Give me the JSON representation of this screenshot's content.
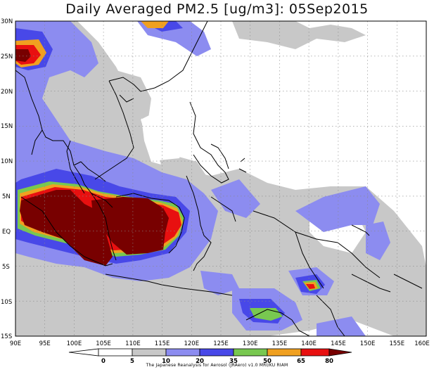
{
  "title": "Daily Averaged PM2.5 [ug/m3]: 05Sep2015",
  "credit": "The Japanese Reanalysis for Aerosol (JRAero) v1.0 MRI/KU RIAM",
  "map": {
    "lon_range": [
      90,
      160
    ],
    "lat_range": [
      -15,
      30
    ],
    "lat_labels": [
      "30N",
      "25N",
      "20N",
      "15N",
      "10N",
      "5N",
      "EQ",
      "5S",
      "10S",
      "15S"
    ],
    "lon_labels": [
      "90E",
      "95E",
      "100E",
      "105E",
      "110E",
      "115E",
      "120E",
      "125E",
      "130E",
      "135E",
      "140E",
      "145E",
      "150E",
      "155E",
      "160E"
    ]
  },
  "colorbar": {
    "levels": [
      "0",
      "5",
      "10",
      "20",
      "35",
      "50",
      "65",
      "80"
    ],
    "colors": [
      "#ffffff",
      "#ffffff",
      "#c8c8c8",
      "#8c8cf0",
      "#4848e8",
      "#78c850",
      "#f0a020",
      "#e81010",
      "#780000"
    ]
  }
}
